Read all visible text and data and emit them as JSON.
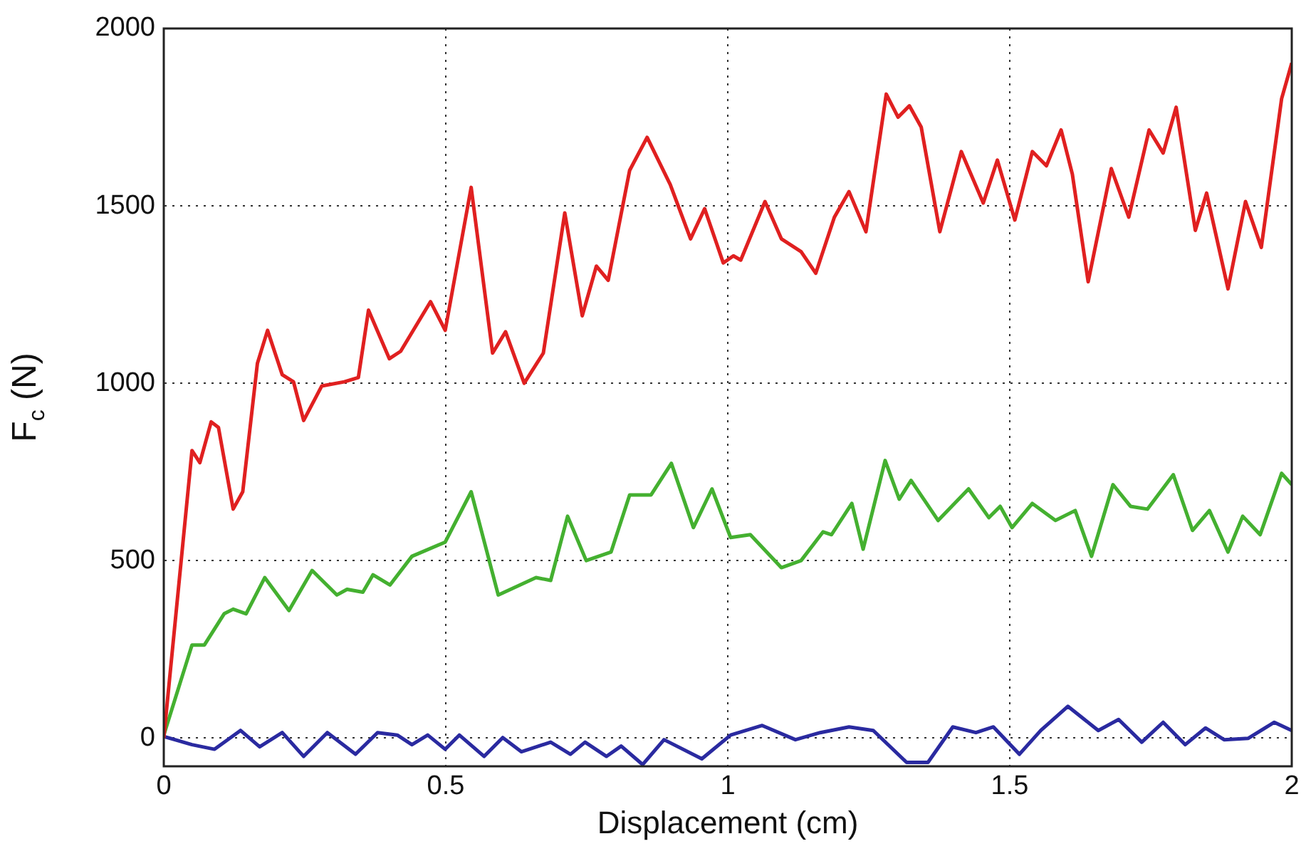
{
  "chart_data": {
    "type": "line",
    "xlabel": "Displacement (cm)",
    "ylabel": "F$_{c}$ (N)",
    "xlim": [
      0,
      2
    ],
    "ylim": [
      -80,
      2000
    ],
    "xticks": [
      0,
      0.5,
      1,
      1.5,
      2
    ],
    "yticks": [
      0,
      500,
      1000,
      1500,
      2000
    ],
    "grid": true,
    "legend": false,
    "line_style": "solid",
    "marker": "none",
    "series": [
      {
        "color": "#e02020",
        "x": [
          0,
          0.05,
          0.064,
          0.084,
          0.097,
          0.123,
          0.14,
          0.166,
          0.184,
          0.21,
          0.23,
          0.248,
          0.28,
          0.32,
          0.345,
          0.363,
          0.4,
          0.42,
          0.473,
          0.499,
          0.545,
          0.583,
          0.606,
          0.639,
          0.673,
          0.711,
          0.742,
          0.767,
          0.788,
          0.826,
          0.857,
          0.898,
          0.934,
          0.959,
          0.992,
          1.01,
          1.023,
          1.066,
          1.095,
          1.13,
          1.156,
          1.189,
          1.215,
          1.245,
          1.281,
          1.302,
          1.322,
          1.343,
          1.376,
          1.414,
          1.453,
          1.478,
          1.509,
          1.54,
          1.565,
          1.591,
          1.611,
          1.639,
          1.68,
          1.711,
          1.747,
          1.772,
          1.795,
          1.829,
          1.849,
          1.887,
          1.918,
          1.946,
          1.982,
          2.0
        ],
        "values": [
          0,
          810,
          776,
          891,
          875,
          645,
          694,
          1056,
          1149,
          1024,
          1004,
          895,
          992,
          1004,
          1016,
          1206,
          1069,
          1090,
          1230,
          1149,
          1552,
          1085,
          1145,
          1000,
          1085,
          1480,
          1190,
          1330,
          1290,
          1600,
          1693,
          1560,
          1407,
          1492,
          1339,
          1359,
          1347,
          1512,
          1407,
          1371,
          1310,
          1468,
          1540,
          1427,
          1815,
          1750,
          1782,
          1722,
          1427,
          1653,
          1508,
          1629,
          1460,
          1653,
          1613,
          1714,
          1589,
          1286,
          1605,
          1468,
          1714,
          1649,
          1778,
          1431,
          1536,
          1266,
          1512,
          1383,
          1802,
          1903
        ]
      },
      {
        "color": "#44b030",
        "x": [
          0,
          0.05,
          0.072,
          0.107,
          0.123,
          0.146,
          0.179,
          0.222,
          0.263,
          0.307,
          0.325,
          0.353,
          0.371,
          0.401,
          0.44,
          0.499,
          0.545,
          0.593,
          0.66,
          0.686,
          0.716,
          0.749,
          0.793,
          0.826,
          0.864,
          0.9,
          0.939,
          0.972,
          1.005,
          1.04,
          1.095,
          1.13,
          1.169,
          1.184,
          1.22,
          1.24,
          1.279,
          1.304,
          1.325,
          1.373,
          1.427,
          1.463,
          1.483,
          1.504,
          1.54,
          1.581,
          1.616,
          1.645,
          1.683,
          1.714,
          1.744,
          1.79,
          1.824,
          1.854,
          1.887,
          1.913,
          1.944,
          1.982,
          2.0
        ],
        "values": [
          8,
          262,
          262,
          350,
          363,
          350,
          452,
          359,
          472,
          403,
          419,
          411,
          460,
          431,
          512,
          552,
          694,
          403,
          452,
          444,
          625,
          500,
          524,
          685,
          685,
          774,
          593,
          702,
          565,
          573,
          480,
          500,
          581,
          573,
          661,
          532,
          782,
          673,
          726,
          613,
          702,
          621,
          653,
          593,
          661,
          613,
          641,
          512,
          714,
          653,
          645,
          742,
          585,
          641,
          524,
          625,
          573,
          746,
          714
        ]
      },
      {
        "color": "#2a2aa0",
        "x": [
          0,
          0.05,
          0.09,
          0.136,
          0.17,
          0.21,
          0.248,
          0.29,
          0.34,
          0.379,
          0.414,
          0.44,
          0.468,
          0.499,
          0.524,
          0.568,
          0.601,
          0.634,
          0.686,
          0.721,
          0.747,
          0.785,
          0.811,
          0.849,
          0.887,
          0.954,
          1.005,
          1.061,
          1.12,
          1.164,
          1.215,
          1.258,
          1.317,
          1.355,
          1.399,
          1.44,
          1.471,
          1.517,
          1.555,
          1.603,
          1.657,
          1.693,
          1.734,
          1.772,
          1.811,
          1.847,
          1.88,
          1.923,
          1.969,
          2.0
        ],
        "values": [
          4,
          -19,
          -32,
          21,
          -25,
          15,
          -52,
          15,
          -46,
          15,
          8,
          -19,
          8,
          -32,
          8,
          -52,
          1,
          -39,
          -12,
          -46,
          -12,
          -52,
          -23,
          -75,
          -5,
          -59,
          8,
          35,
          -5,
          15,
          31,
          21,
          -69,
          -69,
          31,
          15,
          31,
          -46,
          21,
          89,
          21,
          52,
          -12,
          44,
          -19,
          28,
          -5,
          -1,
          44,
          21
        ]
      }
    ]
  }
}
